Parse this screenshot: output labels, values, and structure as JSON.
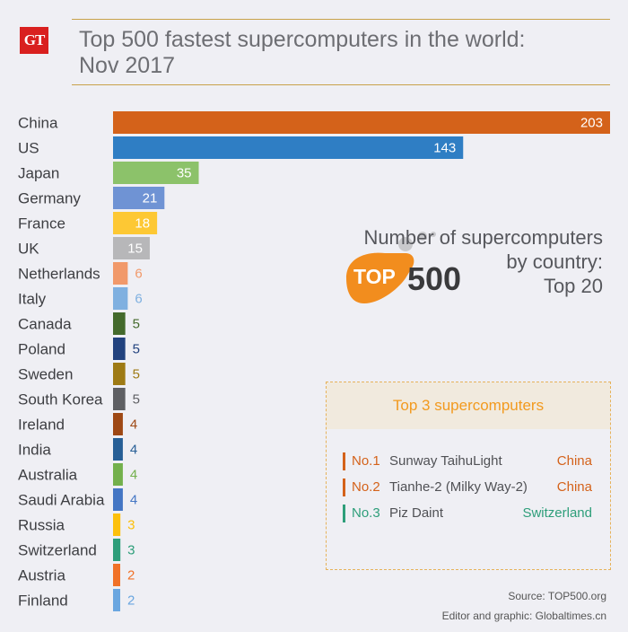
{
  "header": {
    "logo_text": "GT",
    "title_line1": "Top 500 fastest supercomputers in the world:",
    "title_line2": "Nov 2017"
  },
  "brand": {
    "top500_left": "TOP",
    "top500_right": "500"
  },
  "subtitle": {
    "line1": "Number of supercomputers",
    "line2": "by country:",
    "line3": "Top 20"
  },
  "panel": {
    "heading": "Top 3 supercomputers",
    "rows": [
      {
        "rank": "No.1",
        "name": "Sunway TaihuLight",
        "country": "China",
        "color": "#d4621a"
      },
      {
        "rank": "No.2",
        "name": "Tianhe-2 (Milky Way-2)",
        "country": "China",
        "color": "#d4621a"
      },
      {
        "rank": "No.3",
        "name": "Piz Daint",
        "country": "Switzerland",
        "color": "#2e9e7a"
      }
    ]
  },
  "footer": {
    "source": "Source: TOP500.org",
    "credit": "Editor and graphic: Globaltimes.cn"
  },
  "chart_data": {
    "type": "bar",
    "orientation": "horizontal",
    "categories": [
      "China",
      "US",
      "Japan",
      "Germany",
      "France",
      "UK",
      "Netherlands",
      "Italy",
      "Canada",
      "Poland",
      "Sweden",
      "South Korea",
      "Ireland",
      "India",
      "Australia",
      "Saudi Arabia",
      "Russia",
      "Switzerland",
      "Austria",
      "Finland"
    ],
    "values": [
      203,
      143,
      35,
      21,
      18,
      15,
      6,
      6,
      5,
      5,
      5,
      5,
      4,
      4,
      4,
      4,
      3,
      3,
      2,
      2
    ],
    "colors": [
      "#d4621a",
      "#2f7ec4",
      "#8cc26a",
      "#6f93d4",
      "#fdc834",
      "#b7b7b9",
      "#f1996a",
      "#7fb0e0",
      "#446a2c",
      "#22427e",
      "#9e7a14",
      "#5e5f63",
      "#9e4814",
      "#275f96",
      "#73b04c",
      "#4476c4",
      "#fcc00c",
      "#2e9e7a",
      "#f07127",
      "#6aa6e0"
    ],
    "label_inside": [
      true,
      true,
      true,
      true,
      true,
      true,
      false,
      false,
      false,
      false,
      false,
      false,
      false,
      false,
      false,
      false,
      false,
      false,
      false,
      false
    ],
    "value_label_colors": [
      "#ffffff",
      "#ffffff",
      "#ffffff",
      "#ffffff",
      "#ffffff",
      "#ffffff",
      "#f1996a",
      "#7fb0e0",
      "#446a2c",
      "#22427e",
      "#9e7a14",
      "#5e5f63",
      "#9e4814",
      "#275f96",
      "#73b04c",
      "#4476c4",
      "#fcc00c",
      "#2e9e7a",
      "#f07127",
      "#6aa6e0"
    ],
    "xlim": [
      0,
      203
    ],
    "grid": false,
    "title": "",
    "xlabel": "",
    "ylabel": ""
  }
}
